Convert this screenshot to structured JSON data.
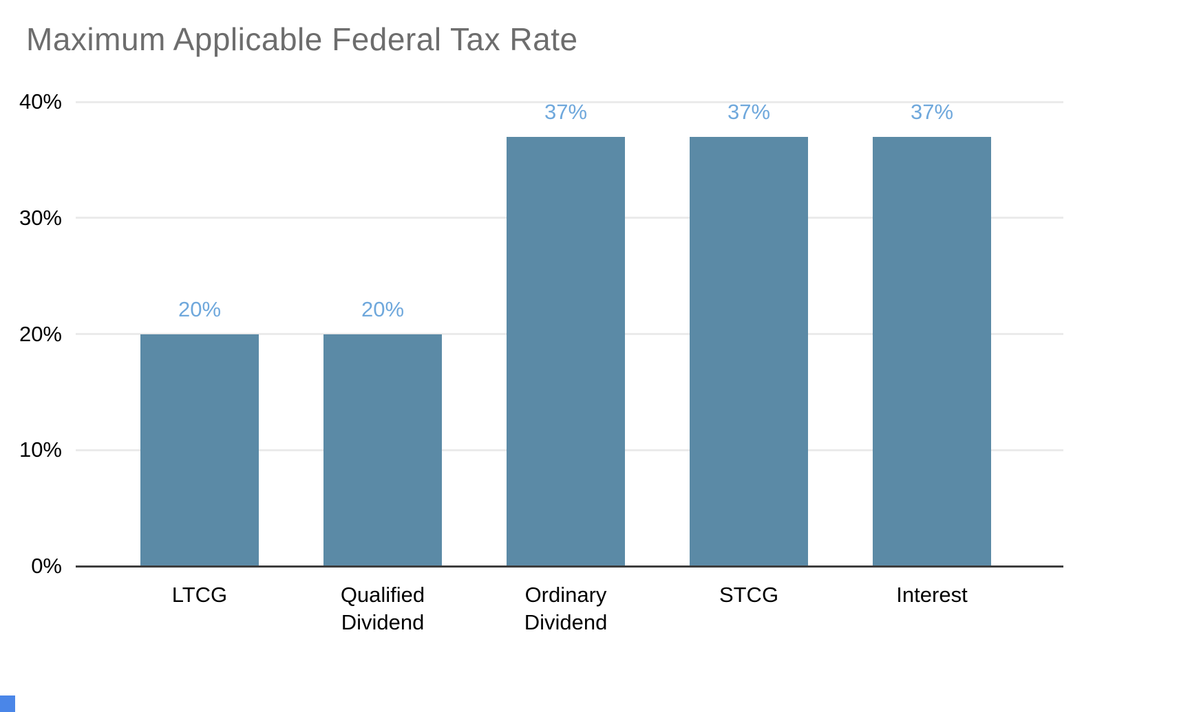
{
  "chart_data": {
    "type": "bar",
    "title": "Maximum Applicable Federal Tax Rate",
    "categories": [
      "LTCG",
      "Qualified Dividend",
      "Ordinary Dividend",
      "STCG",
      "Interest"
    ],
    "values": [
      20,
      20,
      37,
      37,
      37
    ],
    "data_labels": [
      "20%",
      "20%",
      "37%",
      "37%",
      "37%"
    ],
    "y_ticks": [
      "0%",
      "10%",
      "20%",
      "30%",
      "40%"
    ],
    "ylim": [
      0,
      40
    ],
    "xlabel": "",
    "ylabel": "",
    "grid": true,
    "legend_position": "none",
    "colors": {
      "bar": "#5b8aa6",
      "data_label": "#6fa8dc",
      "title": "#6d6d6d",
      "axis_text": "#000000",
      "gridline": "#ebebeb",
      "baseline": "#3d3d3d",
      "handle": "#4a86e8"
    }
  }
}
